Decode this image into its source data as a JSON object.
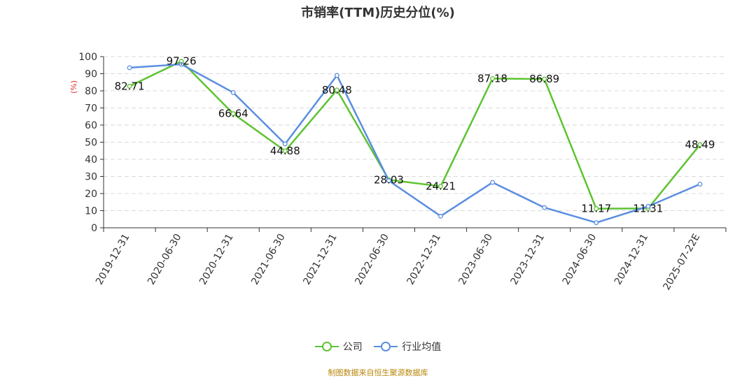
{
  "chart_data": {
    "type": "line",
    "title": "市销率(TTM)历史分位(%)",
    "ylabel": "(%)",
    "ylim": [
      0,
      100
    ],
    "yticks": [
      0,
      10,
      20,
      30,
      40,
      50,
      60,
      70,
      80,
      90,
      100
    ],
    "grid": true,
    "legend_position": "bottom",
    "categories": [
      "2019-12-31",
      "2020-06-30",
      "2020-12-31",
      "2021-06-30",
      "2021-12-31",
      "2022-06-30",
      "2022-12-31",
      "2023-06-30",
      "2023-12-31",
      "2024-06-30",
      "2024-12-31",
      "2025-07-22E"
    ],
    "series": [
      {
        "name": "公司",
        "color": "#5ec332",
        "values": [
          82.71,
          97.26,
          66.64,
          44.88,
          80.48,
          28.03,
          24.21,
          87.18,
          86.89,
          11.17,
          11.31,
          48.49
        ],
        "labels": [
          "82.71",
          "97.26",
          "66.64",
          "44.88",
          "80.48",
          "28.03",
          "24.21",
          "87.18",
          "86.89",
          "11.17",
          "11.31",
          "48.49"
        ]
      },
      {
        "name": "行业均值",
        "color": "#5b8ee0",
        "values": [
          93.5,
          95.5,
          79,
          49,
          89,
          27.5,
          6.8,
          26.5,
          11.8,
          3,
          12.5,
          25.5
        ]
      }
    ]
  },
  "source_note": "制图数据来自恒生聚源数据库"
}
